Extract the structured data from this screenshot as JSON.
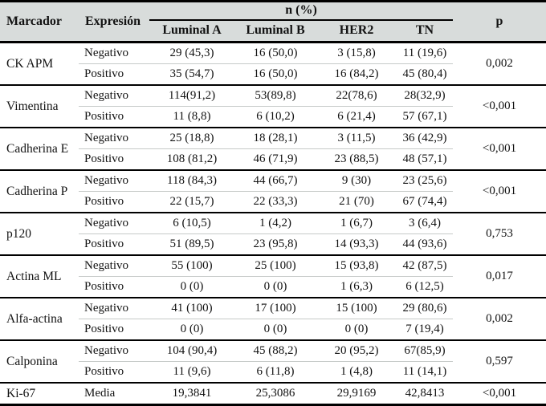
{
  "colors": {
    "header_bg": "#d8dcdb",
    "rule_dark": "#000000",
    "rule_light": "#c6cac8"
  },
  "table": {
    "header": {
      "marcador": "Marcador",
      "expresion": "Expresión",
      "n_pct": "n (%)",
      "subtypes": [
        "Luminal A",
        "Luminal B",
        "HER2",
        "TN"
      ],
      "p": "p"
    },
    "groups": [
      {
        "marker": "CK APM",
        "p": "0,002",
        "rows": [
          {
            "expression": "Negativo",
            "values": [
              "29 (45,3)",
              "16 (50,0)",
              "3 (15,8)",
              "11 (19,6)"
            ]
          },
          {
            "expression": "Positivo",
            "values": [
              "35 (54,7)",
              "16 (50,0)",
              "16 (84,2)",
              "45 (80,4)"
            ]
          }
        ]
      },
      {
        "marker": "Vimentina",
        "p": "<0,001",
        "rows": [
          {
            "expression": "Negativo",
            "values": [
              "114(91,2)",
              "53(89,8)",
              "22(78,6)",
              "28(32,9)"
            ]
          },
          {
            "expression": "Positivo",
            "values": [
              "11 (8,8)",
              "6 (10,2)",
              "6 (21,4)",
              "57 (67,1)"
            ]
          }
        ]
      },
      {
        "marker": "Cadherina E",
        "p": "<0,001",
        "rows": [
          {
            "expression": "Negativo",
            "values": [
              "25 (18,8)",
              "18 (28,1)",
              "3 (11,5)",
              "36 (42,9)"
            ]
          },
          {
            "expression": "Positivo",
            "values": [
              "108 (81,2)",
              "46 (71,9)",
              "23 (88,5)",
              "48 (57,1)"
            ]
          }
        ]
      },
      {
        "marker": "Cadherina P",
        "p": "<0,001",
        "rows": [
          {
            "expression": "Negativo",
            "values": [
              "118 (84,3)",
              "44 (66,7)",
              "9 (30)",
              "23 (25,6)"
            ]
          },
          {
            "expression": "Positivo",
            "values": [
              "22 (15,7)",
              "22 (33,3)",
              "21 (70)",
              "67 (74,4)"
            ]
          }
        ]
      },
      {
        "marker": "p120",
        "p": "0,753",
        "rows": [
          {
            "expression": "Negativo",
            "values": [
              "6 (10,5)",
              "1 (4,2)",
              "1 (6,7)",
              "3 (6,4)"
            ]
          },
          {
            "expression": "Positivo",
            "values": [
              "51 (89,5)",
              "23 (95,8)",
              "14 (93,3)",
              "44 (93,6)"
            ]
          }
        ]
      },
      {
        "marker": "Actina ML",
        "p": "0,017",
        "rows": [
          {
            "expression": "Negativo",
            "values": [
              "55 (100)",
              "25 (100)",
              "15 (93,8)",
              "42 (87,5)"
            ]
          },
          {
            "expression": "Positivo",
            "values": [
              "0 (0)",
              "0 (0)",
              "1 (6,3)",
              "6 (12,5)"
            ]
          }
        ]
      },
      {
        "marker": "Alfa-actina",
        "p": "0,002",
        "rows": [
          {
            "expression": "Negativo",
            "values": [
              "41 (100)",
              "17 (100)",
              "15 (100)",
              "29 (80,6)"
            ]
          },
          {
            "expression": "Positivo",
            "values": [
              "0 (0)",
              "0 (0)",
              "0 (0)",
              "7 (19,4)"
            ]
          }
        ]
      },
      {
        "marker": "Calponina",
        "p": "0,597",
        "rows": [
          {
            "expression": "Negativo",
            "values": [
              "104 (90,4)",
              "45 (88,2)",
              "20 (95,2)",
              "67(85,9)"
            ]
          },
          {
            "expression": "Positivo",
            "values": [
              "11 (9,6)",
              "6 (11,8)",
              "1 (4,8)",
              "11 (14,1)"
            ]
          }
        ]
      },
      {
        "marker": "Ki-67",
        "p": "<0,001",
        "rows": [
          {
            "expression": "Media",
            "values": [
              "19,3841",
              "25,3086",
              "29,9169",
              "42,8413"
            ]
          }
        ]
      }
    ]
  }
}
